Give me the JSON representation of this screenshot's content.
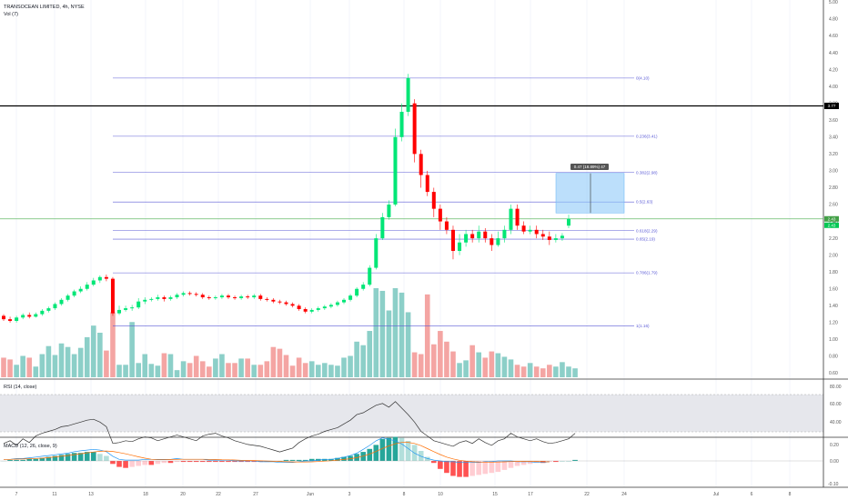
{
  "header": {
    "title": "TRANSOCEAN LIMITED, 4h, NYSE",
    "volume_label": "Vol (7)"
  },
  "rsi": {
    "label": "RSI (14, close)",
    "ticks": [
      "80.00",
      "60.00",
      "40.00"
    ]
  },
  "macd": {
    "label": "MACD (12, 26, close, 9)",
    "ticks": [
      "0.20",
      "0.00",
      "-0.10"
    ]
  },
  "price_axis": {
    "ticks": [
      "5.00",
      "4.80",
      "4.60",
      "4.40",
      "4.20",
      "4.00",
      "3.80",
      "3.60",
      "3.40",
      "3.20",
      "3.00",
      "2.80",
      "2.60",
      "2.40",
      "2.20",
      "2.00",
      "1.80",
      "1.60",
      "1.40",
      "1.20",
      "1.00",
      "0.80",
      "0.60"
    ],
    "marker_price": "3.77",
    "marker_current": "2.43",
    "marker_current2": "2.43"
  },
  "fib_levels": [
    {
      "label": "0(4.10)",
      "price": 4.1
    },
    {
      "label": "0.236(3.41)",
      "price": 3.41
    },
    {
      "label": "0.382(2.98)",
      "price": 2.98
    },
    {
      "label": "0.5(2.63)",
      "price": 2.63
    },
    {
      "label": "0.618(2.29)",
      "price": 2.29
    },
    {
      "label": "0.65(2.19)",
      "price": 2.19
    },
    {
      "label": "0.786(1.79)",
      "price": 1.79
    },
    {
      "label": "1(1.16)",
      "price": 1.16
    }
  ],
  "measure_box": {
    "label": "0.47 (18.89%) 47",
    "top_price": 2.97,
    "bottom_price": 2.5
  },
  "horizontal_line_price": 3.77,
  "current_price_line": 2.43,
  "time_axis": {
    "labels": [
      "7",
      "11",
      "13",
      "18",
      "20",
      "22",
      "27",
      "Jun",
      "3",
      "8",
      "10",
      "15",
      "17",
      "22",
      "24",
      "Jul",
      "6",
      "8"
    ]
  },
  "colors": {
    "up": "#26a69a",
    "up_bright": "#00e676",
    "down": "#ef5350",
    "down_bright": "#ff0000",
    "fib": "#5b5bd6",
    "measure": "#90caf9",
    "current": "#66bb6a"
  }
}
